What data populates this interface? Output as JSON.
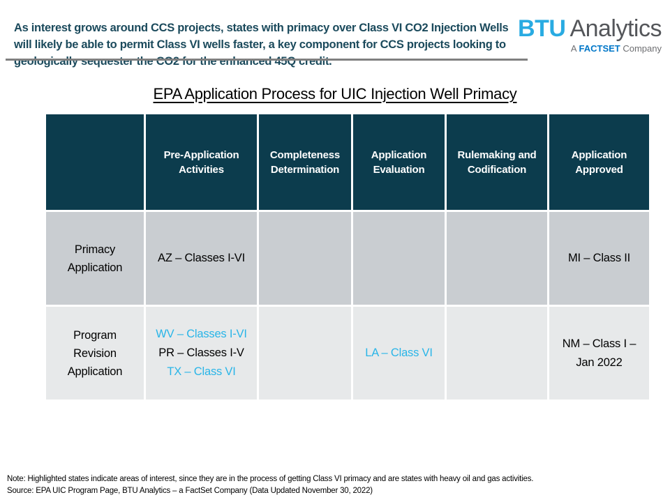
{
  "intro": {
    "text": "As interest grows around CCS projects, states with primacy over Class VI CO2 Injection Wells will likely be able to permit Class VI wells faster, a key component for CCS projects looking to geologically sequester the CO2 for the enhanced 45Q credit."
  },
  "logo": {
    "brand_primary": "BTU",
    "brand_secondary": "Analytics",
    "tagline_prefix": "A",
    "tagline_brand": "FACTSET",
    "tagline_suffix": "Company"
  },
  "title": "EPA Application Process for UIC Injection Well Primacy",
  "table": {
    "headers": [
      "",
      "Pre-Application Activities",
      "Completeness Determination",
      "Application Evaluation",
      "Rulemaking and Codification",
      "Application Approved"
    ],
    "rows": [
      {
        "label": "Primacy Application",
        "cells": [
          [
            {
              "text": "AZ – Classes I-VI",
              "highlight": false
            }
          ],
          [],
          [],
          [],
          [
            {
              "text": "MI – Class II",
              "highlight": false
            }
          ]
        ]
      },
      {
        "label": "Program Revision Application",
        "cells": [
          [
            {
              "text": "WV – Classes I-VI",
              "highlight": true
            },
            {
              "text": "PR – Classes I-V",
              "highlight": false
            },
            {
              "text": "TX – Class VI",
              "highlight": true
            }
          ],
          [],
          [
            {
              "text": "LA – Class VI",
              "highlight": true
            }
          ],
          [],
          [
            {
              "text": "NM – Class I – Jan 2022",
              "highlight": false,
              "wrap": true
            }
          ]
        ]
      }
    ]
  },
  "footer": {
    "note": "Note:  Highlighted states indicate areas of interest, since they are in the process of getting  Class VI primacy and are states with heavy oil and gas activities.",
    "source": "Source: EPA UIC Program Page, BTU Analytics – a FactSet Company (Data Updated November 30, 2022)"
  },
  "colors": {
    "header_teal": "#0c3c4d",
    "highlight_blue": "#29b5e8",
    "intro_teal": "#1b4a5c",
    "brand_cyan": "#29abe2",
    "factset_blue": "#0077c8",
    "row_dark_gray": "#c9cdd1",
    "row_light_gray": "#e7e9ea",
    "divider_gray": "#808080"
  }
}
